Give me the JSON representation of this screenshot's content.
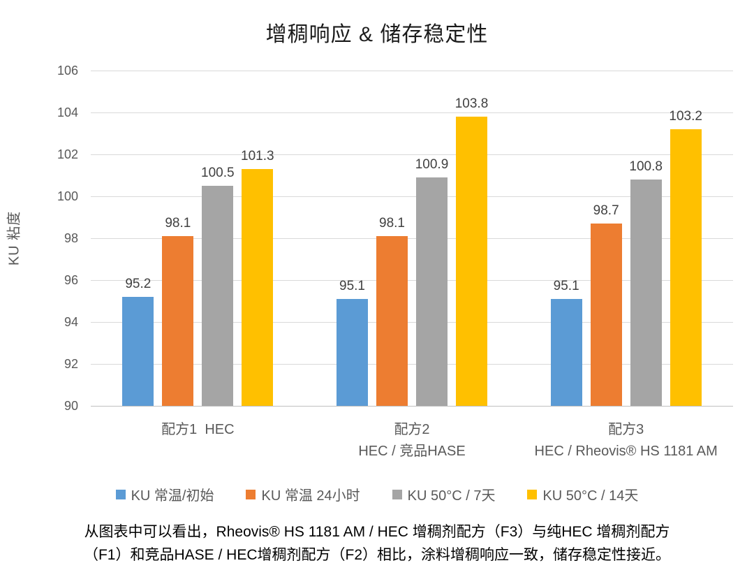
{
  "title": "增稠响应 & 储存稳定性",
  "chart_data": {
    "type": "bar",
    "title": "增稠响应 & 储存稳定性",
    "xlabel": "",
    "ylabel": "KU 粘度",
    "ylim": [
      90,
      106
    ],
    "ytick_step": 2,
    "grid": true,
    "legend_position": "bottom",
    "categories": [
      "配方1  HEC",
      "配方2\nHEC / 竞品HASE",
      "配方3\nHEC / Rheovis® HS 1181 AM"
    ],
    "series": [
      {
        "name": "KU 常温/初始",
        "color": "#5B9BD5",
        "values": [
          95.2,
          95.1,
          95.1
        ]
      },
      {
        "name": "KU 常温 24小时",
        "color": "#ED7D31",
        "values": [
          98.1,
          98.1,
          98.7
        ]
      },
      {
        "name": "KU 50°C / 7天",
        "color": "#A5A5A5",
        "values": [
          100.5,
          100.9,
          100.8
        ]
      },
      {
        "name": "KU 50°C / 14天",
        "color": "#FFC000",
        "values": [
          101.3,
          103.8,
          103.2
        ]
      }
    ]
  },
  "caption": {
    "line1": "从图表中可以看出，Rheovis® HS 1181 AM / HEC 增稠剂配方（F3）与纯HEC 增稠剂配方",
    "line2": "（F1）和竞品HASE / HEC增稠剂配方（F2）相比，涂料增稠响应一致，储存稳定性接近。"
  },
  "style_colors": {
    "gridline": "#d9d9d9",
    "axis_line": "#bfbfbf",
    "tick_label": "#595959",
    "data_label": "#404040",
    "title_text": "#1a1a1a",
    "caption_text": "#000000",
    "background": "#ffffff"
  }
}
